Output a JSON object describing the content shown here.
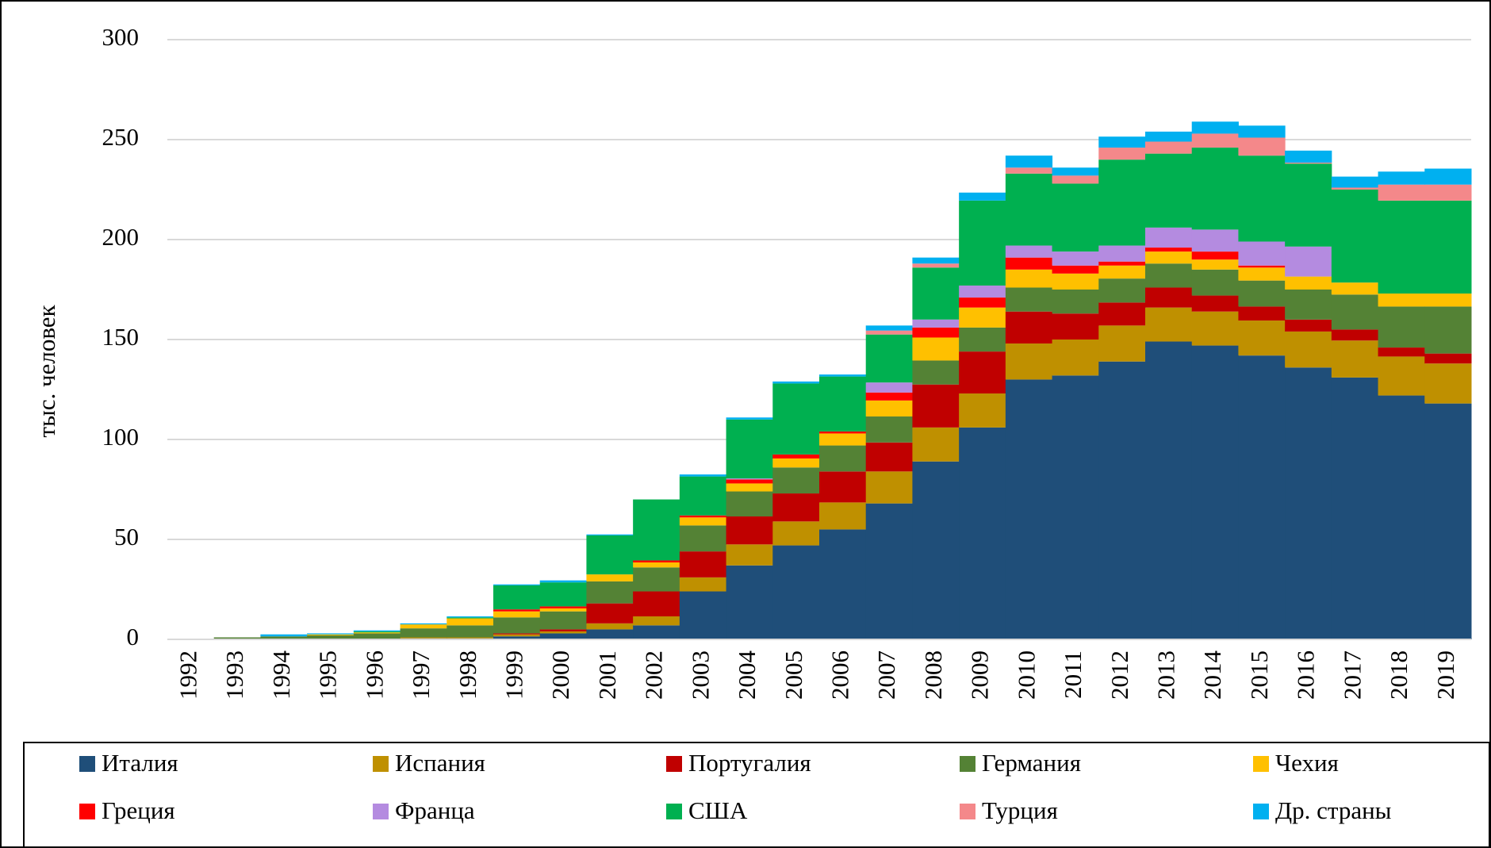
{
  "chart_data": {
    "type": "bar",
    "stacked": true,
    "y_label": "тыс. человек",
    "categories": [
      "1992",
      "1993",
      "1994",
      "1995",
      "1996",
      "1997",
      "1998",
      "1999",
      "2000",
      "2001",
      "2002",
      "2003",
      "2004",
      "2005",
      "2006",
      "2007",
      "2008",
      "2009",
      "2010",
      "2011",
      "2012",
      "2013",
      "2014",
      "2015",
      "2016",
      "2017",
      "2018",
      "2019"
    ],
    "ylim": [
      0,
      300
    ],
    "yticks": [
      0,
      50,
      100,
      150,
      200,
      250,
      300
    ],
    "grid": true,
    "legend": "bottom",
    "series": [
      {
        "name": "Италия",
        "color": "#1f4e79",
        "values": [
          0,
          0,
          0,
          0,
          0,
          0.5,
          0.5,
          1.5,
          3,
          5,
          7,
          24,
          37,
          47,
          55,
          68,
          89,
          106,
          130,
          132,
          139,
          149,
          147,
          142,
          136,
          131,
          122,
          118
        ]
      },
      {
        "name": "Испания",
        "color": "#bf9000",
        "values": [
          0,
          0,
          0,
          0,
          0,
          0.5,
          0.5,
          1,
          1,
          3,
          4.5,
          7,
          10.5,
          12,
          13.5,
          16,
          17,
          17,
          18,
          18,
          18,
          17,
          17,
          17.5,
          18,
          18.5,
          19.5,
          20
        ]
      },
      {
        "name": "Португалия",
        "color": "#c00000",
        "values": [
          0,
          0,
          0,
          0,
          0,
          0,
          0,
          0.5,
          1,
          10,
          12.5,
          13,
          14,
          14,
          15.5,
          14.5,
          21.5,
          21,
          16,
          13,
          11.5,
          10,
          8,
          7,
          6,
          5.5,
          4.5,
          5
        ]
      },
      {
        "name": "Германия",
        "color": "#548235",
        "values": [
          0,
          1,
          1.5,
          2,
          3,
          4.5,
          6,
          8,
          9,
          11,
          12,
          13,
          12.5,
          13,
          13,
          13,
          12,
          12,
          12,
          12,
          12,
          12,
          13,
          13,
          15,
          17.5,
          20.5,
          23.5
        ]
      },
      {
        "name": "Чехия",
        "color": "#ffc000",
        "values": [
          0,
          0,
          0,
          0.5,
          0.5,
          2,
          3.5,
          3,
          1.5,
          3.5,
          2.5,
          4,
          4,
          4.5,
          6,
          8,
          11.5,
          10,
          9,
          8,
          6.5,
          6,
          5,
          6.5,
          6.5,
          6,
          6.5,
          6.5
        ]
      },
      {
        "name": "Греция",
        "color": "#ff0000",
        "values": [
          0,
          0,
          0,
          0,
          0,
          0,
          0,
          1,
          1,
          0,
          1,
          1,
          2,
          2,
          1,
          4,
          5,
          5,
          6,
          4,
          2,
          2,
          4,
          1,
          0,
          0,
          0,
          0
        ]
      },
      {
        "name": "Франца",
        "color": "#b48be0",
        "values": [
          0,
          0,
          0,
          0,
          0,
          0,
          0,
          0,
          0,
          0,
          0,
          0,
          0.5,
          0,
          0,
          5,
          4,
          6,
          6,
          7,
          8,
          10,
          11,
          12,
          15,
          0,
          0,
          0
        ]
      },
      {
        "name": "США",
        "color": "#00b050",
        "values": [
          0,
          0,
          0,
          0,
          0.5,
          0,
          0.5,
          12,
          12,
          19.5,
          30.5,
          19.5,
          29.5,
          35.5,
          27.5,
          24,
          26,
          42.5,
          36,
          34,
          43,
          37,
          41,
          43,
          41.5,
          46.5,
          46.5,
          46.5
        ]
      },
      {
        "name": "Турция",
        "color": "#f4888a",
        "values": [
          0,
          0,
          0,
          0,
          0,
          0,
          0,
          0,
          0,
          0,
          0,
          0,
          0,
          0,
          0,
          2,
          2,
          0,
          3,
          4,
          6,
          6,
          7,
          9,
          0.5,
          1,
          8,
          8
        ]
      },
      {
        "name": "Др. страны",
        "color": "#00b0f0",
        "values": [
          0,
          0,
          1,
          0.5,
          0.5,
          0.5,
          0.5,
          0.5,
          1,
          0.5,
          0,
          1,
          1,
          1,
          1,
          2.5,
          3,
          4,
          6,
          4,
          5.5,
          5,
          6,
          6,
          6,
          5.5,
          6.5,
          8
        ]
      }
    ]
  }
}
